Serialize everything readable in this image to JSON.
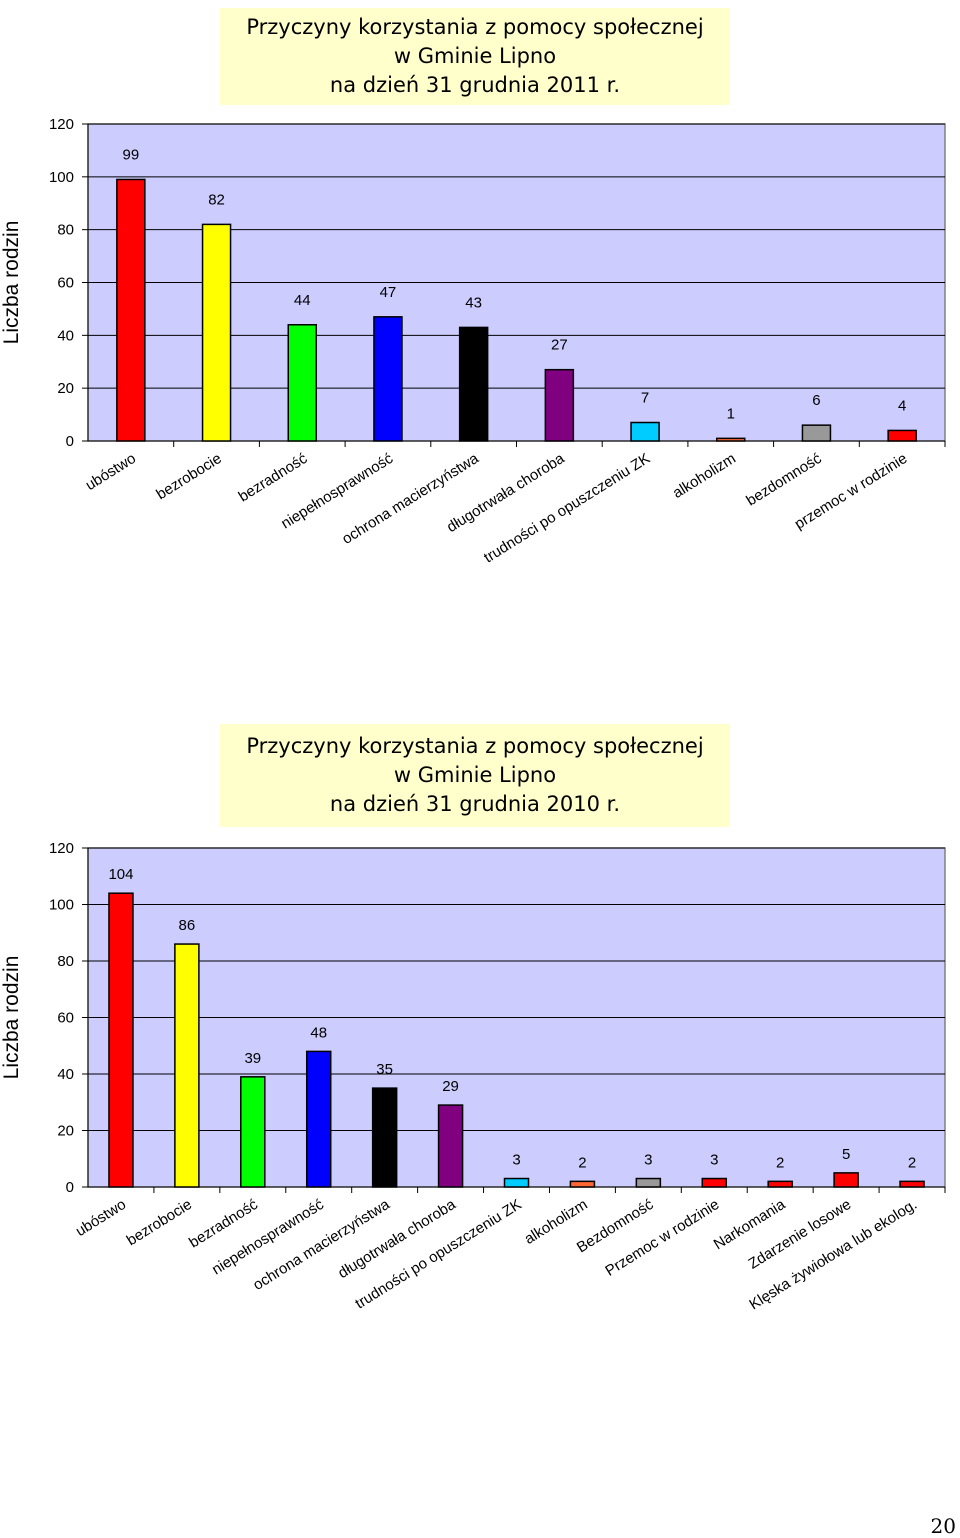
{
  "chart_data": [
    {
      "type": "bar",
      "title": [
        "Przyczyny korzystania z pomocy społecznej",
        "w Gminie Lipno",
        "na dzień 31 grudnia  2011 r."
      ],
      "ylabel": "Liczba rodzin",
      "ylim": [
        0,
        120
      ],
      "yticks": [
        "0",
        "20",
        "40",
        "60",
        "80",
        "100",
        "120"
      ],
      "grid": true,
      "categories": [
        "ubóstwo",
        "bezrobocie",
        "bezradność",
        "niepełnosprawność",
        "ochrona macierzyństwa",
        "długotrwała choroba",
        "trudności po opuszczeniu ZK",
        "alkoholizm",
        "bezdomność",
        "przemoc w rodzinie"
      ],
      "values": [
        99,
        82,
        44,
        47,
        43,
        27,
        7,
        1,
        6,
        4
      ],
      "colors": [
        "#ff0000",
        "#ffff00",
        "#00ff00",
        "#0000ff",
        "#000000",
        "#800080",
        "#00ccff",
        "#ff6633",
        "#999999",
        "#ff0000"
      ]
    },
    {
      "type": "bar",
      "title": [
        "Przyczyny korzystania z pomocy społecznej",
        "w Gminie Lipno",
        "na dzień 31 grudnia  2010 r."
      ],
      "ylabel": "Liczba rodzin",
      "ylim": [
        0,
        120
      ],
      "yticks": [
        "0",
        "20",
        "40",
        "60",
        "80",
        "100",
        "120"
      ],
      "grid": true,
      "categories": [
        "ubóstwo",
        "bezrobocie",
        "bezradność",
        "niepełnosprawność",
        "ochrona macierzyństwa",
        "długotrwała choroba",
        "trudności po opuszczeniu ZK",
        "alkoholizm",
        "Bezdomność",
        "Przemoc w rodzinie",
        "Narkomania",
        "Zdarzenie losowe",
        "Klęska żywiołowa lub ekolog."
      ],
      "values": [
        104,
        86,
        39,
        48,
        35,
        29,
        3,
        2,
        3,
        3,
        2,
        5,
        2
      ],
      "colors": [
        "#ff0000",
        "#ffff00",
        "#00ff00",
        "#0000ff",
        "#000000",
        "#800080",
        "#00ccff",
        "#ff6633",
        "#999999",
        "#ff0000",
        "#ff0000",
        "#ff0000",
        "#ff0000"
      ]
    }
  ],
  "page_number": "20"
}
